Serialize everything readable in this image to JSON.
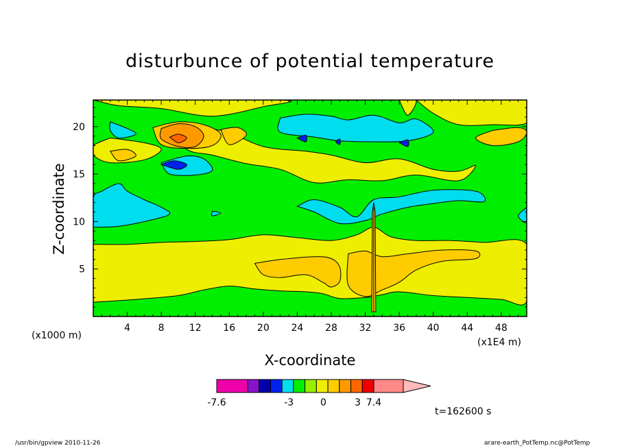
{
  "chart_data": {
    "type": "heatmap",
    "title": "disturbunce of potential temperature",
    "xlabel": "X-coordinate",
    "ylabel": "Z-coordinate",
    "x_unit_label": "(x1000 m)",
    "x_secondary_unit_label": "(x1E4 m)",
    "xlim": [
      0,
      51
    ],
    "ylim": [
      0,
      22.8
    ],
    "x_ticks": [
      4,
      8,
      12,
      16,
      20,
      24,
      28,
      32,
      36,
      40,
      44,
      48
    ],
    "x_tick_labels": [
      "4",
      "8",
      "12",
      "16",
      "20",
      "24",
      "28",
      "32",
      "36",
      "40",
      "44",
      "48"
    ],
    "y_ticks": [
      5,
      10,
      15,
      20
    ],
    "y_tick_labels": [
      "5",
      "10",
      "15",
      "20"
    ],
    "colorbar": {
      "levels": [
        -7.6,
        -6.6,
        -5.6,
        -4.6,
        -3.6,
        -2.6,
        -1.6,
        -0.6,
        0.4,
        1.4,
        2.4,
        3.4,
        4.4,
        7.4
      ],
      "labels": [
        "-7.6",
        "-3",
        "0",
        "3",
        "7.4"
      ],
      "label_values": [
        -7.6,
        -3,
        0,
        3,
        7.4
      ],
      "colors": [
        "#ee00aa",
        "#ee00aa",
        "#8811cc",
        "#0000aa",
        "#0022ee",
        "#00ddee",
        "#00ee00",
        "#99ee00",
        "#eeee00",
        "#ffcc00",
        "#ff9900",
        "#ff6600",
        "#ee0000",
        "#ff8888",
        "#ffbbbb"
      ],
      "extend": "max"
    },
    "time_label": "t=162600 s",
    "background_level": "#00ee00",
    "regions": [
      {
        "level": "#eeee00",
        "points": [
          [
            0,
            1.5
          ],
          [
            5,
            1.8
          ],
          [
            10,
            2.2
          ],
          [
            13,
            2.8
          ],
          [
            16,
            3.2
          ],
          [
            19,
            2.9
          ],
          [
            22,
            2.7
          ],
          [
            25,
            2.6
          ],
          [
            27,
            2.4
          ],
          [
            29,
            1.9
          ],
          [
            32,
            2.0
          ],
          [
            34,
            2.3
          ],
          [
            36,
            2.6
          ],
          [
            40,
            2.2
          ],
          [
            44,
            2.0
          ],
          [
            48,
            1.8
          ],
          [
            51,
            1.6
          ],
          [
            51,
            7.6
          ],
          [
            46,
            7.8
          ],
          [
            42,
            8.0
          ],
          [
            38,
            8.0
          ],
          [
            35,
            8.4
          ],
          [
            33,
            9.4
          ],
          [
            31,
            8.6
          ],
          [
            28,
            8.0
          ],
          [
            24,
            8.3
          ],
          [
            20,
            8.6
          ],
          [
            16,
            8.1
          ],
          [
            12,
            7.9
          ],
          [
            8,
            7.8
          ],
          [
            4,
            7.6
          ],
          [
            0,
            7.6
          ]
        ]
      },
      {
        "level": "#eeee00",
        "points": [
          [
            9,
            19.9
          ],
          [
            15,
            19.6
          ],
          [
            20,
            17.9
          ],
          [
            25,
            17.4
          ],
          [
            28,
            17.0
          ],
          [
            32,
            16.2
          ],
          [
            36,
            16.6
          ],
          [
            40,
            15.5
          ],
          [
            43,
            15.3
          ],
          [
            45,
            15.9
          ],
          [
            43,
            14.3
          ],
          [
            38,
            14.9
          ],
          [
            34,
            14.3
          ],
          [
            30,
            14.4
          ],
          [
            26,
            14.1
          ],
          [
            22,
            15.5
          ],
          [
            18,
            16.1
          ],
          [
            14,
            17.0
          ],
          [
            11,
            17.6
          ],
          [
            9,
            19.9
          ]
        ]
      },
      {
        "level": "#eeee00",
        "points": [
          [
            2,
            18.8
          ],
          [
            6,
            18.3
          ],
          [
            8,
            17.6
          ],
          [
            6,
            16.5
          ],
          [
            2,
            16.2
          ],
          [
            0,
            17.0
          ],
          [
            0,
            18.0
          ],
          [
            2,
            18.8
          ]
        ]
      },
      {
        "level": "#eeee00",
        "points": [
          [
            0,
            22.8
          ],
          [
            3,
            22.2
          ],
          [
            8,
            21.9
          ],
          [
            14,
            21.1
          ],
          [
            20,
            22.1
          ],
          [
            22,
            22.8
          ],
          [
            0,
            22.8
          ]
        ]
      },
      {
        "level": "#eeee00",
        "points": [
          [
            38,
            22.8
          ],
          [
            40,
            21.4
          ],
          [
            43,
            20.2
          ],
          [
            47,
            20.2
          ],
          [
            51,
            20.4
          ],
          [
            51,
            22.8
          ],
          [
            38,
            22.8
          ]
        ]
      },
      {
        "level": "#eeee00",
        "points": [
          [
            36,
            22.8
          ],
          [
            37,
            21.2
          ],
          [
            38,
            22.8
          ],
          [
            36,
            22.8
          ]
        ]
      },
      {
        "level": "#ffcc00",
        "points": [
          [
            7,
            19.9
          ],
          [
            10,
            20.5
          ],
          [
            13,
            20.2
          ],
          [
            15,
            19.2
          ],
          [
            14,
            18.0
          ],
          [
            11,
            17.7
          ],
          [
            8,
            18.1
          ],
          [
            7,
            19.9
          ]
        ]
      },
      {
        "level": "#ffcc00",
        "points": [
          [
            2,
            17.4
          ],
          [
            4,
            17.6
          ],
          [
            5,
            16.9
          ],
          [
            3,
            16.4
          ],
          [
            2,
            17.4
          ]
        ]
      },
      {
        "level": "#ffcc00",
        "points": [
          [
            15,
            19.7
          ],
          [
            17,
            19.9
          ],
          [
            18,
            19.1
          ],
          [
            16,
            18.1
          ],
          [
            15,
            19.7
          ]
        ]
      },
      {
        "level": "#ffcc00",
        "points": [
          [
            47,
            19.6
          ],
          [
            50,
            19.9
          ],
          [
            51,
            19.4
          ],
          [
            50,
            18.4
          ],
          [
            47,
            18.0
          ],
          [
            45,
            18.8
          ],
          [
            47,
            19.6
          ]
        ]
      },
      {
        "level": "#ffcc00",
        "points": [
          [
            19,
            5.6
          ],
          [
            22,
            6.0
          ],
          [
            26,
            6.3
          ],
          [
            28,
            6.1
          ],
          [
            29,
            5.2
          ],
          [
            29,
            3.7
          ],
          [
            28,
            3.1
          ],
          [
            27,
            3.6
          ],
          [
            25,
            4.4
          ],
          [
            22,
            4.1
          ],
          [
            20,
            4.4
          ],
          [
            19,
            5.6
          ]
        ]
      },
      {
        "level": "#ffcc00",
        "points": [
          [
            30,
            6.6
          ],
          [
            32,
            6.9
          ],
          [
            34,
            6.3
          ],
          [
            37,
            6.6
          ],
          [
            41,
            7.0
          ],
          [
            45,
            6.9
          ],
          [
            45,
            6.1
          ],
          [
            41,
            5.8
          ],
          [
            38,
            4.9
          ],
          [
            36,
            3.6
          ],
          [
            34,
            2.8
          ],
          [
            32,
            2.1
          ],
          [
            30,
            3.3
          ],
          [
            30,
            6.6
          ]
        ]
      },
      {
        "level": "#ff9900",
        "points": [
          [
            8,
            19.8
          ],
          [
            10,
            20.3
          ],
          [
            12,
            20.0
          ],
          [
            13,
            19.0
          ],
          [
            12,
            17.9
          ],
          [
            10,
            17.9
          ],
          [
            8,
            18.7
          ],
          [
            8,
            19.8
          ]
        ]
      },
      {
        "level": "#ff6600",
        "points": [
          [
            9,
            18.9
          ],
          [
            10,
            19.2
          ],
          [
            11,
            18.8
          ],
          [
            10,
            18.3
          ],
          [
            9,
            18.9
          ]
        ]
      },
      {
        "level": "#00ddee",
        "points": [
          [
            0,
            9.4
          ],
          [
            0,
            12.5
          ],
          [
            1,
            13.2
          ],
          [
            3,
            14.0
          ],
          [
            4,
            13.2
          ],
          [
            6,
            12.3
          ],
          [
            8,
            11.5
          ],
          [
            9,
            10.8
          ],
          [
            7,
            10.2
          ],
          [
            3,
            9.5
          ],
          [
            0,
            9.4
          ]
        ]
      },
      {
        "level": "#00ddee",
        "points": [
          [
            2,
            20.5
          ],
          [
            4,
            19.8
          ],
          [
            5,
            19.2
          ],
          [
            3,
            18.8
          ],
          [
            2,
            19.6
          ],
          [
            2,
            20.5
          ]
        ]
      },
      {
        "level": "#00ddee",
        "points": [
          [
            8,
            16.2
          ],
          [
            11,
            16.9
          ],
          [
            13,
            16.6
          ],
          [
            14,
            15.4
          ],
          [
            12,
            14.9
          ],
          [
            9,
            15.0
          ],
          [
            8,
            16.2
          ]
        ]
      },
      {
        "level": "#00ddee",
        "points": [
          [
            22,
            20.9
          ],
          [
            25,
            21.3
          ],
          [
            28,
            21.1
          ],
          [
            30,
            20.7
          ],
          [
            33,
            21.2
          ],
          [
            36,
            20.4
          ],
          [
            38,
            20.8
          ],
          [
            40,
            19.4
          ],
          [
            37,
            18.5
          ],
          [
            33,
            18.4
          ],
          [
            29,
            18.5
          ],
          [
            26,
            18.9
          ],
          [
            22,
            19.4
          ],
          [
            22,
            20.9
          ]
        ]
      },
      {
        "level": "#00ddee",
        "points": [
          [
            24,
            11.6
          ],
          [
            26,
            12.3
          ],
          [
            29,
            11.5
          ],
          [
            31,
            10.5
          ],
          [
            33,
            12.3
          ],
          [
            36,
            12.6
          ],
          [
            40,
            13.3
          ],
          [
            45,
            13.2
          ],
          [
            46,
            12.1
          ],
          [
            43,
            12.2
          ],
          [
            40,
            11.9
          ],
          [
            37,
            11.5
          ],
          [
            34,
            10.8
          ],
          [
            32,
            10.1
          ],
          [
            29,
            9.8
          ],
          [
            26,
            11.0
          ],
          [
            24,
            11.6
          ]
        ]
      },
      {
        "level": "#00ddee",
        "points": [
          [
            51,
            11.5
          ],
          [
            51,
            9.9
          ],
          [
            50,
            10.6
          ],
          [
            51,
            11.5
          ]
        ]
      },
      {
        "level": "#00ddee",
        "points": [
          [
            14,
            11.1
          ],
          [
            15,
            10.9
          ],
          [
            14,
            10.6
          ],
          [
            14,
            11.1
          ]
        ]
      },
      {
        "level": "#0022ee",
        "points": [
          [
            8,
            16.0
          ],
          [
            9.5,
            16.4
          ],
          [
            11,
            16.0
          ],
          [
            10,
            15.5
          ],
          [
            8,
            16.0
          ]
        ]
      },
      {
        "level": "#0022ee",
        "points": [
          [
            24,
            18.8
          ],
          [
            25,
            19.1
          ],
          [
            25,
            18.4
          ],
          [
            24,
            18.8
          ]
        ]
      },
      {
        "level": "#0022ee",
        "points": [
          [
            36,
            18.3
          ],
          [
            37,
            18.6
          ],
          [
            37,
            17.9
          ],
          [
            36,
            18.3
          ]
        ]
      },
      {
        "level": "#0022ee",
        "points": [
          [
            28.5,
            18.4
          ],
          [
            29,
            18.7
          ],
          [
            29,
            18.1
          ],
          [
            28.5,
            18.4
          ]
        ]
      }
    ],
    "streak": {
      "x": 33,
      "zmin": 0.5,
      "zmax": 12
    }
  },
  "footer": {
    "left": "/usr/bin/gpview   2010-11-26",
    "right": "arare-earth_PotTemp.nc@PotTemp"
  }
}
